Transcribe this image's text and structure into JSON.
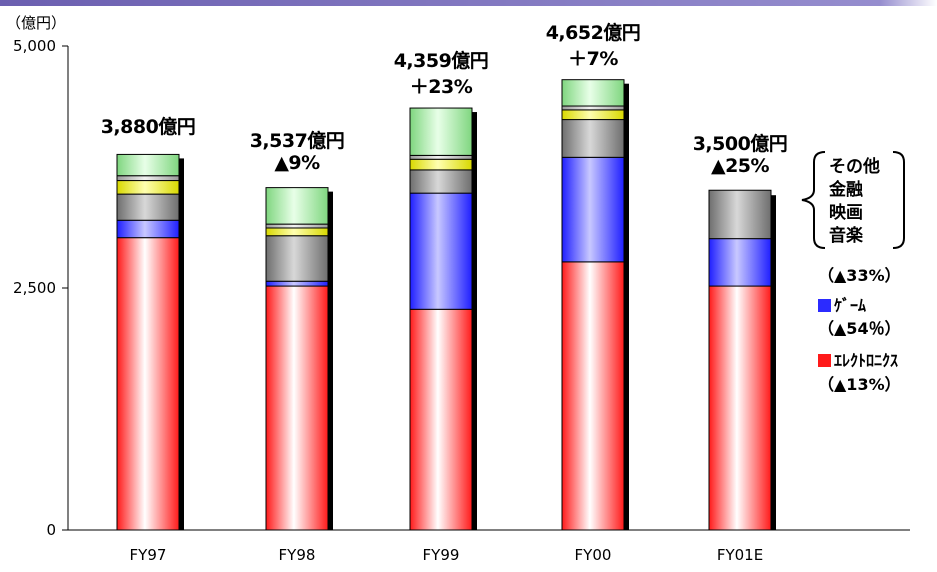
{
  "colors": {
    "topline": "#6b5fb0",
    "electronics": "#ff1a1a",
    "game": "#2b2bff",
    "music": "#9a9a9a",
    "movie": "#e6e600",
    "finance": "#c0c0c0",
    "other": "#9ee39e"
  },
  "chart_data": {
    "type": "bar",
    "stacked": true,
    "unit_label": "（億円）",
    "ylim": [
      0,
      5000
    ],
    "yticks": [
      "0",
      "2,500",
      "5,000"
    ],
    "ytick_values": [
      0,
      2500,
      5000
    ],
    "categories": [
      "FY97",
      "FY98",
      "FY99",
      "FY00",
      "FY01E"
    ],
    "totals": [
      "3,880億円",
      "3,537億円",
      "4,359億円",
      "4,652億円",
      "3,500億円"
    ],
    "total_values": [
      3880,
      3537,
      4359,
      4652,
      3500
    ],
    "changes": [
      "",
      "▲9%",
      "＋23%",
      "＋7%",
      "▲25%"
    ],
    "series": [
      {
        "name": "エレクトロニクス",
        "key": "electronics",
        "values": [
          3020,
          2520,
          2280,
          2770,
          2520
        ]
      },
      {
        "name": "ゲーム",
        "key": "game",
        "values": [
          180,
          50,
          1200,
          1080,
          490
        ]
      },
      {
        "name": "音楽",
        "key": "music",
        "values": [
          270,
          470,
          240,
          390,
          500
        ]
      },
      {
        "name": "映画",
        "key": "movie",
        "values": [
          140,
          80,
          110,
          100,
          0
        ]
      },
      {
        "name": "金融",
        "key": "finance",
        "values": [
          50,
          40,
          40,
          40,
          0
        ]
      },
      {
        "name": "その他",
        "key": "other",
        "values": [
          220,
          377,
          489,
          272,
          0
        ]
      }
    ]
  },
  "legend": {
    "group_lines": [
      "その他",
      "金融",
      "映画",
      "音楽"
    ],
    "group_change": "（▲33%）",
    "game_label": "ｹﾞｰﾑ",
    "game_change": "（▲54％）",
    "electronics_label": "ｴﾚｸﾄﾛﾆｸｽ",
    "electronics_change": "（▲13%）"
  }
}
